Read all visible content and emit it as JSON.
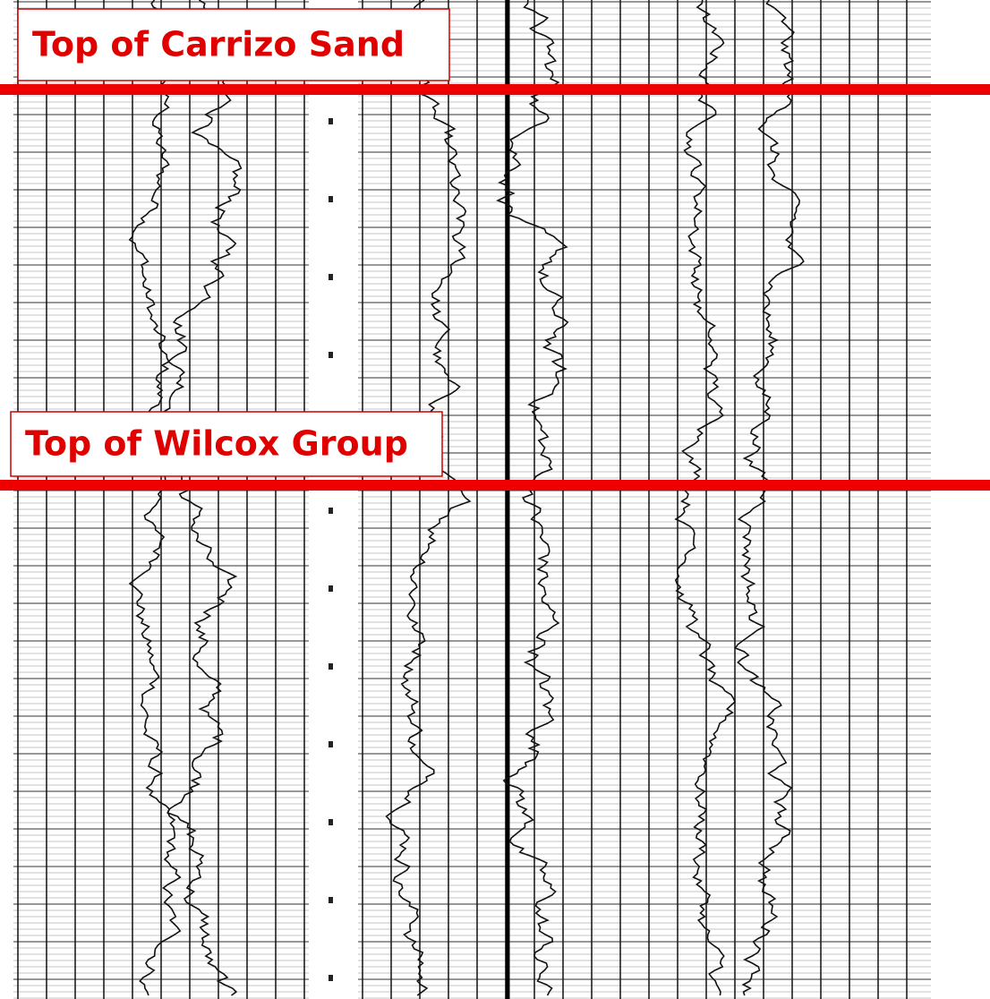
{
  "annotations": [
    {
      "label": "Top of Carrizo Sand"
    },
    {
      "label": "Top of Wilcox Group"
    }
  ]
}
